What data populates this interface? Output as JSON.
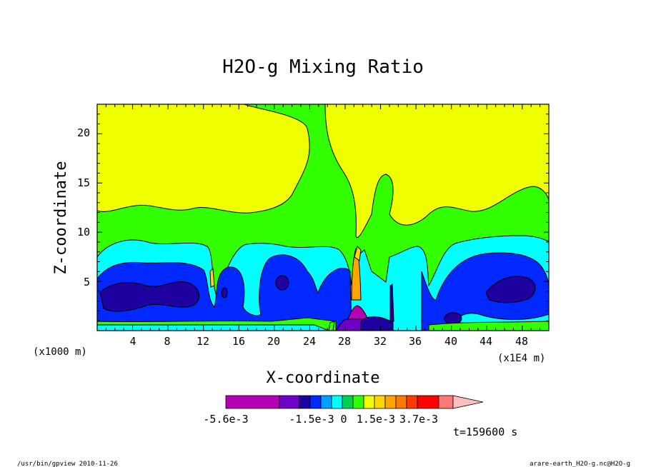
{
  "chart_data": {
    "type": "heatmap",
    "title": "H2O-g Mixing Ratio",
    "xlabel": "X-coordinate",
    "ylabel": "Z-coordinate",
    "x_unit_left": "(x1000 m)",
    "x_unit_right": "(x1E4 m)",
    "x_ticks": [
      "4",
      "8",
      "12",
      "16",
      "20",
      "24",
      "28",
      "32",
      "36",
      "40",
      "44",
      "48"
    ],
    "y_ticks": [
      "5",
      "10",
      "15",
      "20"
    ],
    "xlim": [
      0,
      51
    ],
    "ylim": [
      0,
      23
    ],
    "colorbar": {
      "labels": [
        "-5.6e-3",
        "-1.5e-3",
        "0",
        "1.5e-3",
        "3.7e-3"
      ],
      "colors": [
        "#b400b4",
        "#6e00c8",
        "#1e00a0",
        "#0028ff",
        "#00a0ff",
        "#00ffff",
        "#00d250",
        "#32ff00",
        "#f0ff00",
        "#ffd700",
        "#ffa500",
        "#ff7800",
        "#ff3c00",
        "#ff0000",
        "#ff7878",
        "#ffbebe"
      ]
    },
    "time_label": "t=159600 s"
  },
  "footer": {
    "left": "/usr/bin/gpview  2010-11-26",
    "right": "arare-earth_H2O-g.nc@H2O-g"
  }
}
